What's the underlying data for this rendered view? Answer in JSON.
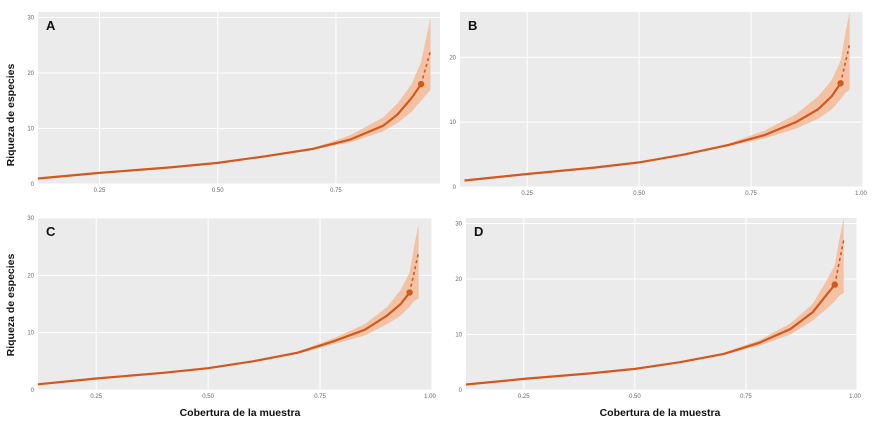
{
  "y_axis_title": "Riqueza de especies",
  "x_axis_title": "Cobertura de la muestra",
  "colors": {
    "line": "#d2581e",
    "band": "#f5b48c",
    "panel": "#ebebeb"
  },
  "chart_data": [
    {
      "type": "line",
      "panel_label": "A",
      "xlabel": "",
      "ylabel": "Riqueza de especies",
      "xlim": [
        0.12,
        0.97
      ],
      "ylim": [
        0,
        31
      ],
      "x_ticks": [
        "0.25",
        "0.50",
        "0.75"
      ],
      "x_tick_values": [
        0.25,
        0.5,
        0.75
      ],
      "y_ticks": [
        "0",
        "10",
        "20",
        "30"
      ],
      "y_tick_values": [
        0,
        10,
        20,
        30
      ],
      "grid": true,
      "series": [
        {
          "x": [
            0.12,
            0.25,
            0.4,
            0.5,
            0.6,
            0.7,
            0.78,
            0.85,
            0.88,
            0.91,
            0.93
          ],
          "y": [
            1,
            2,
            3,
            3.8,
            5,
            6.3,
            8,
            10.5,
            12.5,
            15.5,
            18
          ],
          "lower": [
            1,
            2,
            3,
            3.8,
            5,
            6.2,
            7.5,
            9.5,
            11,
            13,
            15
          ],
          "upper": [
            1,
            2,
            3,
            3.8,
            5,
            6.4,
            8.8,
            12,
            14.5,
            18,
            22
          ],
          "extrapolated": {
            "x": [
              0.93,
              0.94,
              0.95
            ],
            "y": [
              18,
              21,
              24
            ],
            "lower": [
              15,
              16,
              17
            ],
            "upper": [
              22,
              26,
              30
            ]
          },
          "observed": {
            "x": 0.93,
            "y": 18
          }
        }
      ]
    },
    {
      "type": "line",
      "panel_label": "B",
      "xlabel": "",
      "ylabel": "",
      "xlim": [
        0.1,
        1.0
      ],
      "ylim": [
        0,
        27
      ],
      "x_ticks": [
        "0.25",
        "0.50",
        "0.75",
        "1.00"
      ],
      "x_tick_values": [
        0.25,
        0.5,
        0.75,
        1.0
      ],
      "y_ticks": [
        "0",
        "10",
        "20"
      ],
      "y_tick_values": [
        0,
        10,
        20
      ],
      "grid": true,
      "series": [
        {
          "x": [
            0.11,
            0.25,
            0.4,
            0.5,
            0.6,
            0.7,
            0.78,
            0.85,
            0.9,
            0.93,
            0.95
          ],
          "y": [
            1,
            2,
            3,
            3.8,
            5,
            6.5,
            8,
            10,
            12,
            14,
            16
          ],
          "lower": [
            1,
            2,
            3,
            3.8,
            5,
            6.3,
            7.5,
            9,
            10.5,
            12,
            13.5
          ],
          "upper": [
            1,
            2,
            3,
            3.8,
            5,
            6.7,
            8.7,
            11.2,
            14,
            16.5,
            19.5
          ],
          "extrapolated": {
            "x": [
              0.95,
              0.96,
              0.97
            ],
            "y": [
              16,
              19,
              22
            ],
            "lower": [
              13.5,
              14.5,
              15
            ],
            "upper": [
              19.5,
              23.5,
              27
            ]
          },
          "observed": {
            "x": 0.95,
            "y": 16
          }
        }
      ]
    },
    {
      "type": "line",
      "panel_label": "C",
      "xlabel": "Cobertura de la muestra",
      "ylabel": "Riqueza de especies",
      "xlim": [
        0.12,
        1.0
      ],
      "ylim": [
        0,
        30
      ],
      "x_ticks": [
        "0.25",
        "0.50",
        "0.75",
        "1.00"
      ],
      "x_tick_values": [
        0.25,
        0.5,
        0.75,
        1.0
      ],
      "y_ticks": [
        "0",
        "10",
        "20",
        "30"
      ],
      "y_tick_values": [
        0,
        10,
        20,
        30
      ],
      "grid": true,
      "series": [
        {
          "x": [
            0.12,
            0.25,
            0.4,
            0.5,
            0.6,
            0.7,
            0.78,
            0.85,
            0.9,
            0.93,
            0.95
          ],
          "y": [
            1,
            2,
            3,
            3.8,
            5,
            6.5,
            8.5,
            10.5,
            13,
            15,
            17
          ],
          "lower": [
            1,
            2,
            3,
            3.8,
            5,
            6.3,
            8,
            9.5,
            11.5,
            13,
            14.5
          ],
          "upper": [
            1,
            2,
            3,
            3.8,
            5,
            6.7,
            9,
            11.5,
            14.5,
            17.5,
            20.5
          ],
          "extrapolated": {
            "x": [
              0.95,
              0.96,
              0.97
            ],
            "y": [
              17,
              20.5,
              24
            ],
            "lower": [
              14.5,
              15.5,
              16
            ],
            "upper": [
              20.5,
              25,
              29
            ]
          },
          "observed": {
            "x": 0.95,
            "y": 17
          }
        }
      ]
    },
    {
      "type": "line",
      "panel_label": "D",
      "xlabel": "Cobertura de la muestra",
      "ylabel": "",
      "xlim": [
        0.12,
        1.0
      ],
      "ylim": [
        0,
        31
      ],
      "x_ticks": [
        "0.25",
        "0.50",
        "0.75",
        "1.00"
      ],
      "x_tick_values": [
        0.25,
        0.5,
        0.75,
        1.0
      ],
      "y_ticks": [
        "0",
        "10",
        "20",
        "30"
      ],
      "y_tick_values": [
        0,
        10,
        20,
        30
      ],
      "grid": true,
      "series": [
        {
          "x": [
            0.12,
            0.25,
            0.4,
            0.5,
            0.6,
            0.7,
            0.78,
            0.85,
            0.9,
            0.93,
            0.95
          ],
          "y": [
            1,
            2,
            3,
            3.8,
            5,
            6.5,
            8.5,
            11,
            14,
            17,
            19
          ],
          "lower": [
            1,
            2,
            3,
            3.8,
            5,
            6.3,
            8,
            10,
            12.5,
            14.5,
            16
          ],
          "upper": [
            1,
            2,
            3,
            3.8,
            5,
            6.7,
            9,
            12,
            15.5,
            19.5,
            22.5
          ],
          "extrapolated": {
            "x": [
              0.95,
              0.96,
              0.97
            ],
            "y": [
              19,
              23,
              27
            ],
            "lower": [
              16,
              17,
              17.5
            ],
            "upper": [
              22.5,
              27,
              31
            ]
          },
          "observed": {
            "x": 0.95,
            "y": 19
          }
        }
      ]
    }
  ]
}
